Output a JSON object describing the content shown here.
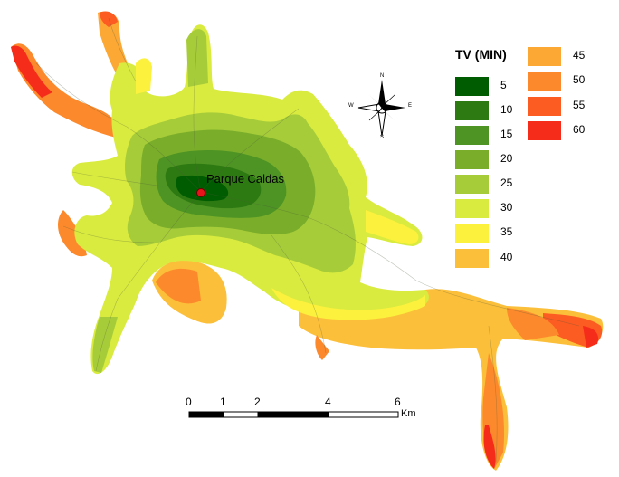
{
  "map": {
    "place": {
      "name": "Parque Caldas"
    }
  },
  "legend": {
    "title": "TV (MIN)",
    "items": [
      {
        "label": "5",
        "color": "#005c00"
      },
      {
        "label": "10",
        "color": "#2e7a12"
      },
      {
        "label": "15",
        "color": "#4e9424"
      },
      {
        "label": "20",
        "color": "#7aae2a"
      },
      {
        "label": "25",
        "color": "#a7cc3a"
      },
      {
        "label": "30",
        "color": "#d9eb3f"
      },
      {
        "label": "35",
        "color": "#fcf13c"
      },
      {
        "label": "40",
        "color": "#fcbf3a"
      },
      {
        "label": "45",
        "color": "#fca835"
      },
      {
        "label": "50",
        "color": "#fc8a2c"
      },
      {
        "label": "55",
        "color": "#fc5c22"
      },
      {
        "label": "60",
        "color": "#f52c1a"
      }
    ]
  },
  "scalebar": {
    "ticks": [
      "0",
      "1",
      "2",
      "4",
      "6"
    ],
    "unit": "Km"
  },
  "compass": {
    "n": "N",
    "s": "S",
    "e": "E",
    "w": "W"
  }
}
